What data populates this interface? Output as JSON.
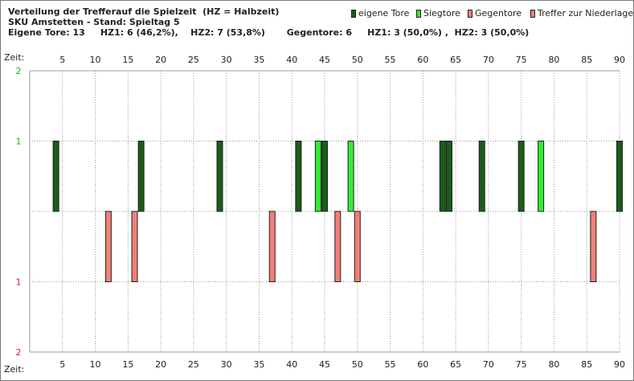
{
  "header": {
    "line1": "Verteilung der Trefferauf die Spielzeit  (HZ = Halbzeit)",
    "line2": "SKU Amstetten - Stand: Spieltag 5",
    "line3": "Eigene Tore: 13     HZ1: 6 (46,2%),    HZ2: 7 (53,8%)       Gegentore: 6     HZ1: 3 (50,0%) ,  HZ2: 3 (50,0%)"
  },
  "legend": [
    {
      "label": "eigene Tore",
      "color": "#1a5c1a"
    },
    {
      "label": "Siegtore",
      "color": "#33ee33"
    },
    {
      "label": "Gegentore",
      "color": "#f08078"
    },
    {
      "label": "Treffer zur Niederlage",
      "color": "#f08078"
    }
  ],
  "chart_data": {
    "type": "bar",
    "xlabel": "Zeit:",
    "xlim": [
      0,
      90
    ],
    "x_ticks": [
      5,
      10,
      15,
      20,
      25,
      30,
      35,
      40,
      45,
      50,
      55,
      60,
      65,
      70,
      75,
      80,
      85,
      90
    ],
    "y_ticks_top": [
      2,
      1
    ],
    "y_ticks_bottom": [
      1,
      2
    ],
    "ylim": [
      -2,
      2
    ],
    "colors": {
      "eigene": "#1a5c1a",
      "sieg": "#33ee33",
      "gegen": "#f08078"
    },
    "series": [
      {
        "name": "eigene Tore",
        "minutes": [
          4,
          17,
          29,
          41,
          45,
          63,
          64,
          69,
          75,
          90
        ],
        "value": 1
      },
      {
        "name": "Siegtore",
        "minutes": [
          44,
          49,
          78
        ],
        "value": 1
      },
      {
        "name": "Gegentore",
        "minutes": [
          12,
          16,
          37,
          47,
          50,
          86
        ],
        "value": -1
      },
      {
        "name": "Treffer zur Niederlage",
        "minutes": [],
        "value": -1
      }
    ]
  }
}
